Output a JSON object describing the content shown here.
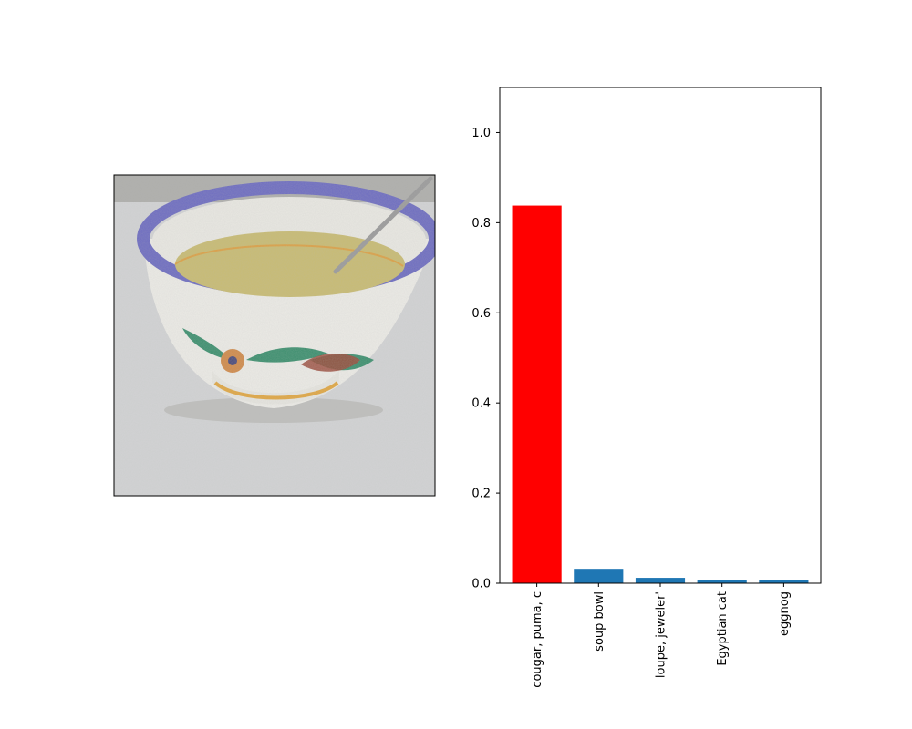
{
  "image_panel": {
    "icon": "soup-bowl-photo",
    "colors": {
      "background": "#d2d3d4",
      "rim": "#6d6cc0",
      "bowl_body": "#ecebe6",
      "soup": "#c8bb72",
      "spoon": "#9a9a9a",
      "flower": "#d08a4a",
      "leaves": "#3c8f6e",
      "stripe": "#e0a642"
    }
  },
  "chart_data": {
    "type": "bar",
    "categories": [
      "cougar, puma, c",
      "soup bowl",
      "loupe, jeweler'",
      "Egyptian cat",
      "eggnog"
    ],
    "values": [
      0.838,
      0.032,
      0.012,
      0.008,
      0.007
    ],
    "bar_colors": [
      "#ff0000",
      "#1f77b4",
      "#1f77b4",
      "#1f77b4",
      "#1f77b4"
    ],
    "ylim": [
      0,
      1.1
    ],
    "yticks": [
      0.0,
      0.2,
      0.4,
      0.6,
      0.8,
      1.0
    ],
    "ytick_labels": [
      "0.0",
      "0.2",
      "0.4",
      "0.6",
      "0.8",
      "1.0"
    ],
    "title": "",
    "xlabel": "",
    "ylabel": "",
    "grid": false,
    "legend": false
  }
}
